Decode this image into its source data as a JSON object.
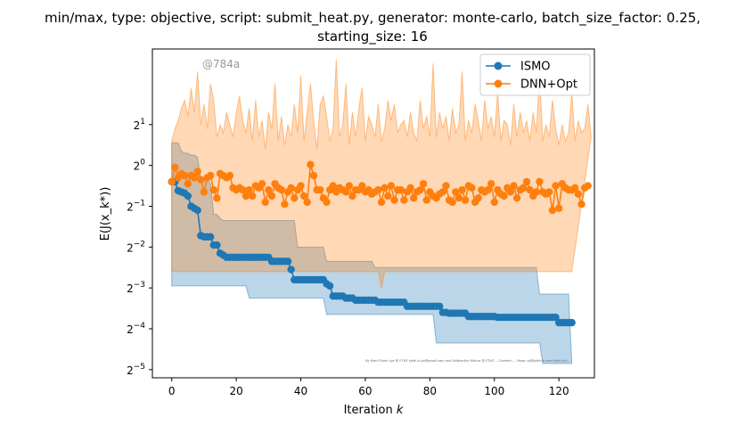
{
  "chart_data": {
    "type": "line",
    "title_line1": "min/max, type: objective, script: submit_heat.py, generator: monte-carlo, batch_size_factor: 0.25,",
    "title_line2": "starting_size: 16",
    "xlabel": "Iteration k",
    "ylabel": "E(J(x_k*))",
    "xlim": [
      -6,
      131
    ],
    "ylim_log2": [
      -5.2,
      2.85
    ],
    "y_scale": "log2",
    "x_ticks": [
      0,
      20,
      40,
      60,
      80,
      100,
      120
    ],
    "y_ticks": [
      {
        "base": "2",
        "exp": "1"
      },
      {
        "base": "2",
        "exp": "0"
      },
      {
        "base": "2",
        "exp": "−1"
      },
      {
        "base": "2",
        "exp": "−2"
      },
      {
        "base": "2",
        "exp": "−3"
      },
      {
        "base": "2",
        "exp": "−4"
      },
      {
        "base": "2",
        "exp": "−5"
      }
    ],
    "grid": false,
    "legend_position": "top-right",
    "annotation": "@784a",
    "footer_note": "By Kjetil Olsen Lye @ ETHZ kjetil.o.lye@gmail.com and Siddhartha Mishra @ ETHZ ... Commit: ... Repo: git@github.com:kjetil-lye/...",
    "series": [
      {
        "name": "ISMO",
        "color": "#1f77b4",
        "band_color": "#1f77b4",
        "x_start": 0,
        "values_log2": [
          -0.4,
          -0.4,
          -0.62,
          -0.65,
          -0.68,
          -0.75,
          -1.0,
          -1.05,
          -1.1,
          -1.72,
          -1.75,
          -1.75,
          -1.75,
          -1.95,
          -1.95,
          -2.15,
          -2.2,
          -2.25,
          -2.25,
          -2.25,
          -2.25,
          -2.25,
          -2.25,
          -2.25,
          -2.25,
          -2.25,
          -2.25,
          -2.25,
          -2.25,
          -2.25,
          -2.25,
          -2.35,
          -2.35,
          -2.35,
          -2.35,
          -2.35,
          -2.35,
          -2.55,
          -2.8,
          -2.8,
          -2.8,
          -2.8,
          -2.8,
          -2.8,
          -2.8,
          -2.8,
          -2.8,
          -2.8,
          -2.9,
          -2.95,
          -3.2,
          -3.2,
          -3.2,
          -3.2,
          -3.25,
          -3.25,
          -3.25,
          -3.3,
          -3.3,
          -3.3,
          -3.3,
          -3.3,
          -3.3,
          -3.3,
          -3.35,
          -3.35,
          -3.35,
          -3.35,
          -3.35,
          -3.35,
          -3.35,
          -3.35,
          -3.35,
          -3.45,
          -3.45,
          -3.45,
          -3.45,
          -3.45,
          -3.45,
          -3.45,
          -3.45,
          -3.45,
          -3.45,
          -3.45,
          -3.6,
          -3.6,
          -3.62,
          -3.62,
          -3.62,
          -3.62,
          -3.62,
          -3.62,
          -3.7,
          -3.7,
          -3.7,
          -3.7,
          -3.7,
          -3.7,
          -3.7,
          -3.7,
          -3.7,
          -3.72,
          -3.72,
          -3.72,
          -3.72,
          -3.72,
          -3.72,
          -3.72,
          -3.72,
          -3.72,
          -3.72,
          -3.72,
          -3.72,
          -3.72,
          -3.72,
          -3.72,
          -3.72,
          -3.72,
          -3.72,
          -3.72,
          -3.85,
          -3.85,
          -3.85,
          -3.85,
          -3.85
        ],
        "band_upper_log2": [
          0.55,
          0.55,
          0.55,
          0.35,
          0.3,
          0.3,
          0.25,
          0.25,
          0.2,
          -0.35,
          -0.35,
          -0.35,
          -0.45,
          -1.2,
          -1.2,
          -1.3,
          -1.35,
          -1.35,
          -1.35,
          -1.35,
          -1.35,
          -1.35,
          -1.35,
          -1.35,
          -1.35,
          -1.35,
          -1.35,
          -1.35,
          -1.35,
          -1.35,
          -1.35,
          -1.35,
          -1.35,
          -1.35,
          -1.35,
          -1.35,
          -1.35,
          -1.35,
          -1.35,
          -2.0,
          -2.0,
          -2.0,
          -2.0,
          -2.0,
          -2.0,
          -2.0,
          -2.0,
          -2.0,
          -2.35,
          -2.35,
          -2.35,
          -2.35,
          -2.35,
          -2.35,
          -2.35,
          -2.35,
          -2.35,
          -2.35,
          -2.35,
          -2.35,
          -2.35,
          -2.35,
          -2.35,
          -2.5,
          -2.5,
          -2.5,
          -2.5,
          -2.5,
          -2.5,
          -2.5,
          -2.5,
          -2.5,
          -2.5,
          -2.5,
          -2.5,
          -2.5,
          -2.5,
          -2.5,
          -2.5,
          -2.5,
          -2.5,
          -2.5,
          -2.5,
          -2.5,
          -2.5,
          -2.5,
          -2.5,
          -2.5,
          -2.5,
          -2.5,
          -2.5,
          -2.5,
          -2.5,
          -2.5,
          -2.5,
          -2.5,
          -2.5,
          -2.5,
          -2.5,
          -2.5,
          -2.5,
          -2.5,
          -2.5,
          -2.5,
          -2.5,
          -2.5,
          -2.5,
          -2.5,
          -2.5,
          -2.5,
          -2.5,
          -2.5,
          -2.5,
          -2.5,
          -3.15,
          -3.15,
          -3.15,
          -3.15,
          -3.15,
          -3.15,
          -3.15,
          -3.15,
          -3.15,
          -3.15
        ],
        "band_lower_log2": [
          -2.95,
          -2.95,
          -2.95,
          -2.95,
          -2.95,
          -2.95,
          -2.95,
          -2.95,
          -2.95,
          -2.95,
          -2.95,
          -2.95,
          -2.95,
          -2.95,
          -2.95,
          -2.95,
          -2.95,
          -2.95,
          -2.95,
          -2.95,
          -2.95,
          -2.95,
          -2.95,
          -2.95,
          -3.25,
          -3.25,
          -3.25,
          -3.25,
          -3.25,
          -3.25,
          -3.25,
          -3.25,
          -3.25,
          -3.25,
          -3.25,
          -3.25,
          -3.25,
          -3.25,
          -3.25,
          -3.25,
          -3.25,
          -3.25,
          -3.25,
          -3.25,
          -3.25,
          -3.25,
          -3.25,
          -3.25,
          -3.65,
          -3.65,
          -3.65,
          -3.65,
          -3.65,
          -3.65,
          -3.65,
          -3.65,
          -3.65,
          -3.65,
          -3.65,
          -3.65,
          -3.65,
          -3.65,
          -3.65,
          -3.65,
          -3.65,
          -3.65,
          -3.65,
          -3.65,
          -3.65,
          -3.65,
          -3.65,
          -3.65,
          -3.65,
          -3.65,
          -3.65,
          -3.65,
          -3.65,
          -3.65,
          -3.65,
          -3.65,
          -3.65,
          -3.65,
          -4.35,
          -4.35,
          -4.35,
          -4.35,
          -4.35,
          -4.35,
          -4.35,
          -4.35,
          -4.35,
          -4.35,
          -4.35,
          -4.35,
          -4.35,
          -4.35,
          -4.35,
          -4.35,
          -4.35,
          -4.35,
          -4.35,
          -4.35,
          -4.35,
          -4.35,
          -4.35,
          -4.35,
          -4.35,
          -4.35,
          -4.35,
          -4.35,
          -4.35,
          -4.35,
          -4.35,
          -4.35,
          -4.35,
          -4.85,
          -4.85,
          -4.85,
          -4.85,
          -4.85,
          -4.85,
          -4.85,
          -4.85,
          -4.85,
          -4.85
        ]
      },
      {
        "name": "DNN+Opt",
        "color": "#ff7f0e",
        "band_color": "#ff7f0e",
        "x_start": 0,
        "values_log2": [
          -0.4,
          -0.05,
          -0.3,
          -0.2,
          -0.25,
          -0.45,
          -0.25,
          -0.3,
          -0.15,
          -0.35,
          -0.65,
          -0.3,
          -0.25,
          -0.6,
          -0.8,
          -0.2,
          -0.25,
          -0.3,
          -0.25,
          -0.55,
          -0.6,
          -0.55,
          -0.6,
          -0.75,
          -0.6,
          -0.75,
          -0.5,
          -0.55,
          -0.45,
          -0.9,
          -0.6,
          -0.75,
          -0.45,
          -0.55,
          -0.6,
          -0.95,
          -0.65,
          -0.55,
          -0.8,
          -0.6,
          -0.5,
          -0.75,
          -0.9,
          0.02,
          -0.25,
          -0.6,
          -0.6,
          -0.8,
          -0.9,
          -0.6,
          -0.5,
          -0.65,
          -0.55,
          -0.6,
          -0.65,
          -0.5,
          -0.75,
          -0.6,
          -0.6,
          -0.5,
          -0.65,
          -0.6,
          -0.7,
          -0.65,
          -0.6,
          -0.9,
          -0.55,
          -0.75,
          -0.5,
          -0.85,
          -0.6,
          -0.6,
          -0.85,
          -0.65,
          -0.55,
          -0.8,
          -0.65,
          -0.6,
          -0.45,
          -0.85,
          -0.65,
          -0.75,
          -0.8,
          -0.7,
          -0.65,
          -0.5,
          -0.85,
          -0.9,
          -0.65,
          -0.8,
          -0.6,
          -0.85,
          -0.5,
          -0.55,
          -0.9,
          -0.8,
          -0.6,
          -0.65,
          -0.6,
          -0.45,
          -0.9,
          -0.6,
          -0.7,
          -0.75,
          -0.55,
          -0.65,
          -0.5,
          -0.8,
          -0.6,
          -0.55,
          -0.4,
          -0.6,
          -0.75,
          -0.65,
          -0.4,
          -0.65,
          -0.7,
          -0.65,
          -1.1,
          -0.5,
          -1.05,
          -0.45,
          -0.55,
          -0.6,
          -0.6,
          -0.55,
          -0.7,
          -0.95,
          -0.55,
          -0.5
        ],
        "band_upper_log2": [
          0.6,
          0.9,
          1.1,
          1.4,
          1.6,
          1.2,
          1.9,
          1.3,
          2.3,
          1.0,
          1.5,
          0.9,
          2.0,
          1.6,
          0.7,
          1.0,
          0.8,
          1.3,
          1.0,
          0.7,
          1.3,
          1.7,
          1.1,
          0.8,
          1.4,
          0.6,
          1.6,
          0.7,
          1.1,
          0.4,
          1.3,
          0.9,
          2.0,
          0.6,
          1.2,
          0.5,
          1.0,
          0.7,
          1.5,
          0.8,
          2.2,
          0.6,
          1.3,
          2.0,
          1.1,
          0.4,
          1.5,
          1.7,
          1.2,
          0.6,
          0.9,
          2.6,
          0.7,
          1.0,
          2.0,
          0.5,
          1.3,
          0.7,
          1.4,
          1.9,
          0.6,
          1.2,
          1.0,
          0.7,
          1.5,
          0.6,
          0.9,
          1.6,
          1.1,
          1.5,
          0.8,
          1.0,
          1.1,
          0.7,
          1.3,
          0.8,
          0.6,
          1.6,
          0.9,
          1.2,
          0.7,
          2.5,
          0.7,
          1.3,
          0.9,
          1.2,
          0.6,
          1.4,
          0.8,
          1.0,
          2.3,
          0.6,
          1.1,
          0.8,
          1.5,
          1.1,
          0.6,
          1.6,
          0.9,
          1.2,
          0.7,
          1.8,
          0.6,
          1.1,
          1.0,
          0.5,
          1.5,
          0.7,
          1.3,
          0.8,
          1.1,
          0.6,
          1.3,
          0.8,
          2.3,
          0.6,
          1.0,
          0.7,
          1.6,
          0.9,
          0.5,
          1.0,
          0.6,
          0.8,
          1.8,
          0.6,
          1.1,
          0.8,
          0.9,
          1.5,
          0.7
        ],
        "band_lower_log2": [
          -2.6,
          -2.6,
          -2.6,
          -2.6,
          -2.6,
          -2.6,
          -2.6,
          -2.6,
          -2.6,
          -2.6,
          -2.6,
          -2.6,
          -2.6,
          -2.6,
          -2.6,
          -2.6,
          -2.6,
          -2.6,
          -2.6,
          -2.6,
          -2.6,
          -2.6,
          -2.6,
          -2.6,
          -2.6,
          -2.6,
          -2.6,
          -2.6,
          -2.6,
          -2.6,
          -2.6,
          -2.6,
          -2.6,
          -2.6,
          -2.6,
          -2.6,
          -2.6,
          -2.6,
          -2.6,
          -2.6,
          -2.6,
          -2.6,
          -2.6,
          -2.6,
          -2.6,
          -2.6,
          -2.6,
          -2.6,
          -2.6,
          -2.6,
          -2.6,
          -2.6,
          -2.6,
          -2.6,
          -2.6,
          -2.6,
          -2.6,
          -2.6,
          -2.6,
          -2.6,
          -2.6,
          -2.6,
          -2.6,
          -2.6,
          -2.6,
          -3.0,
          -2.6,
          -2.6,
          -2.6,
          -2.6,
          -2.6,
          -2.6,
          -2.6,
          -2.6,
          -2.6,
          -2.6,
          -2.6,
          -2.6,
          -2.6,
          -2.6,
          -2.6,
          -2.6,
          -2.6,
          -2.6,
          -2.6,
          -2.6,
          -2.6,
          -2.6,
          -2.6,
          -2.6,
          -2.6,
          -2.6,
          -2.6,
          -2.6,
          -2.6,
          -2.6,
          -2.6,
          -2.6,
          -2.6,
          -2.6,
          -2.6,
          -2.6,
          -2.6,
          -2.6,
          -2.6,
          -2.6,
          -2.6,
          -2.6,
          -2.6,
          -2.6,
          -2.6,
          -2.6,
          -2.6,
          -2.6,
          -2.6,
          -2.6,
          -2.6,
          -2.6,
          -2.6,
          -2.6,
          -2.6,
          -2.6,
          -2.6,
          -2.6,
          -2.6
        ]
      }
    ]
  }
}
